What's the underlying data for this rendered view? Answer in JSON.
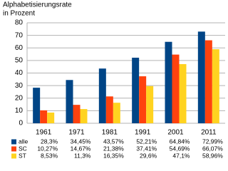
{
  "chart_data": {
    "type": "bar",
    "title": "Alphabetisierungsrate",
    "subtitle": "in Prozent",
    "categories": [
      "1961",
      "1971",
      "1981",
      "1991",
      "2001",
      "2011"
    ],
    "series": [
      {
        "name": "alle",
        "color": "#004586",
        "values": [
          28.3,
          34.45,
          43.57,
          52.21,
          64.84,
          72.99
        ],
        "value_labels": [
          "28,3%",
          "34,45%",
          "43,57%",
          "52,21%",
          "64,84%",
          "72,99%"
        ]
      },
      {
        "name": "SC",
        "color": "#ff420e",
        "values": [
          10.27,
          14.67,
          21.38,
          37.41,
          54.69,
          66.07
        ],
        "value_labels": [
          "10,27%",
          "14,67%",
          "21,38%",
          "37,41%",
          "54,69%",
          "66,07%"
        ]
      },
      {
        "name": "ST",
        "color": "#ffd320",
        "values": [
          8.53,
          11.3,
          16.35,
          29.6,
          47.1,
          58.96
        ],
        "value_labels": [
          "8,53%",
          "11,3%",
          "16,35%",
          "29,6%",
          "47,1%",
          "58,96%"
        ]
      }
    ],
    "ylim": [
      0,
      80
    ],
    "yticks": [
      0,
      10,
      20,
      30,
      40,
      50,
      60,
      70,
      80
    ],
    "grid": true
  }
}
